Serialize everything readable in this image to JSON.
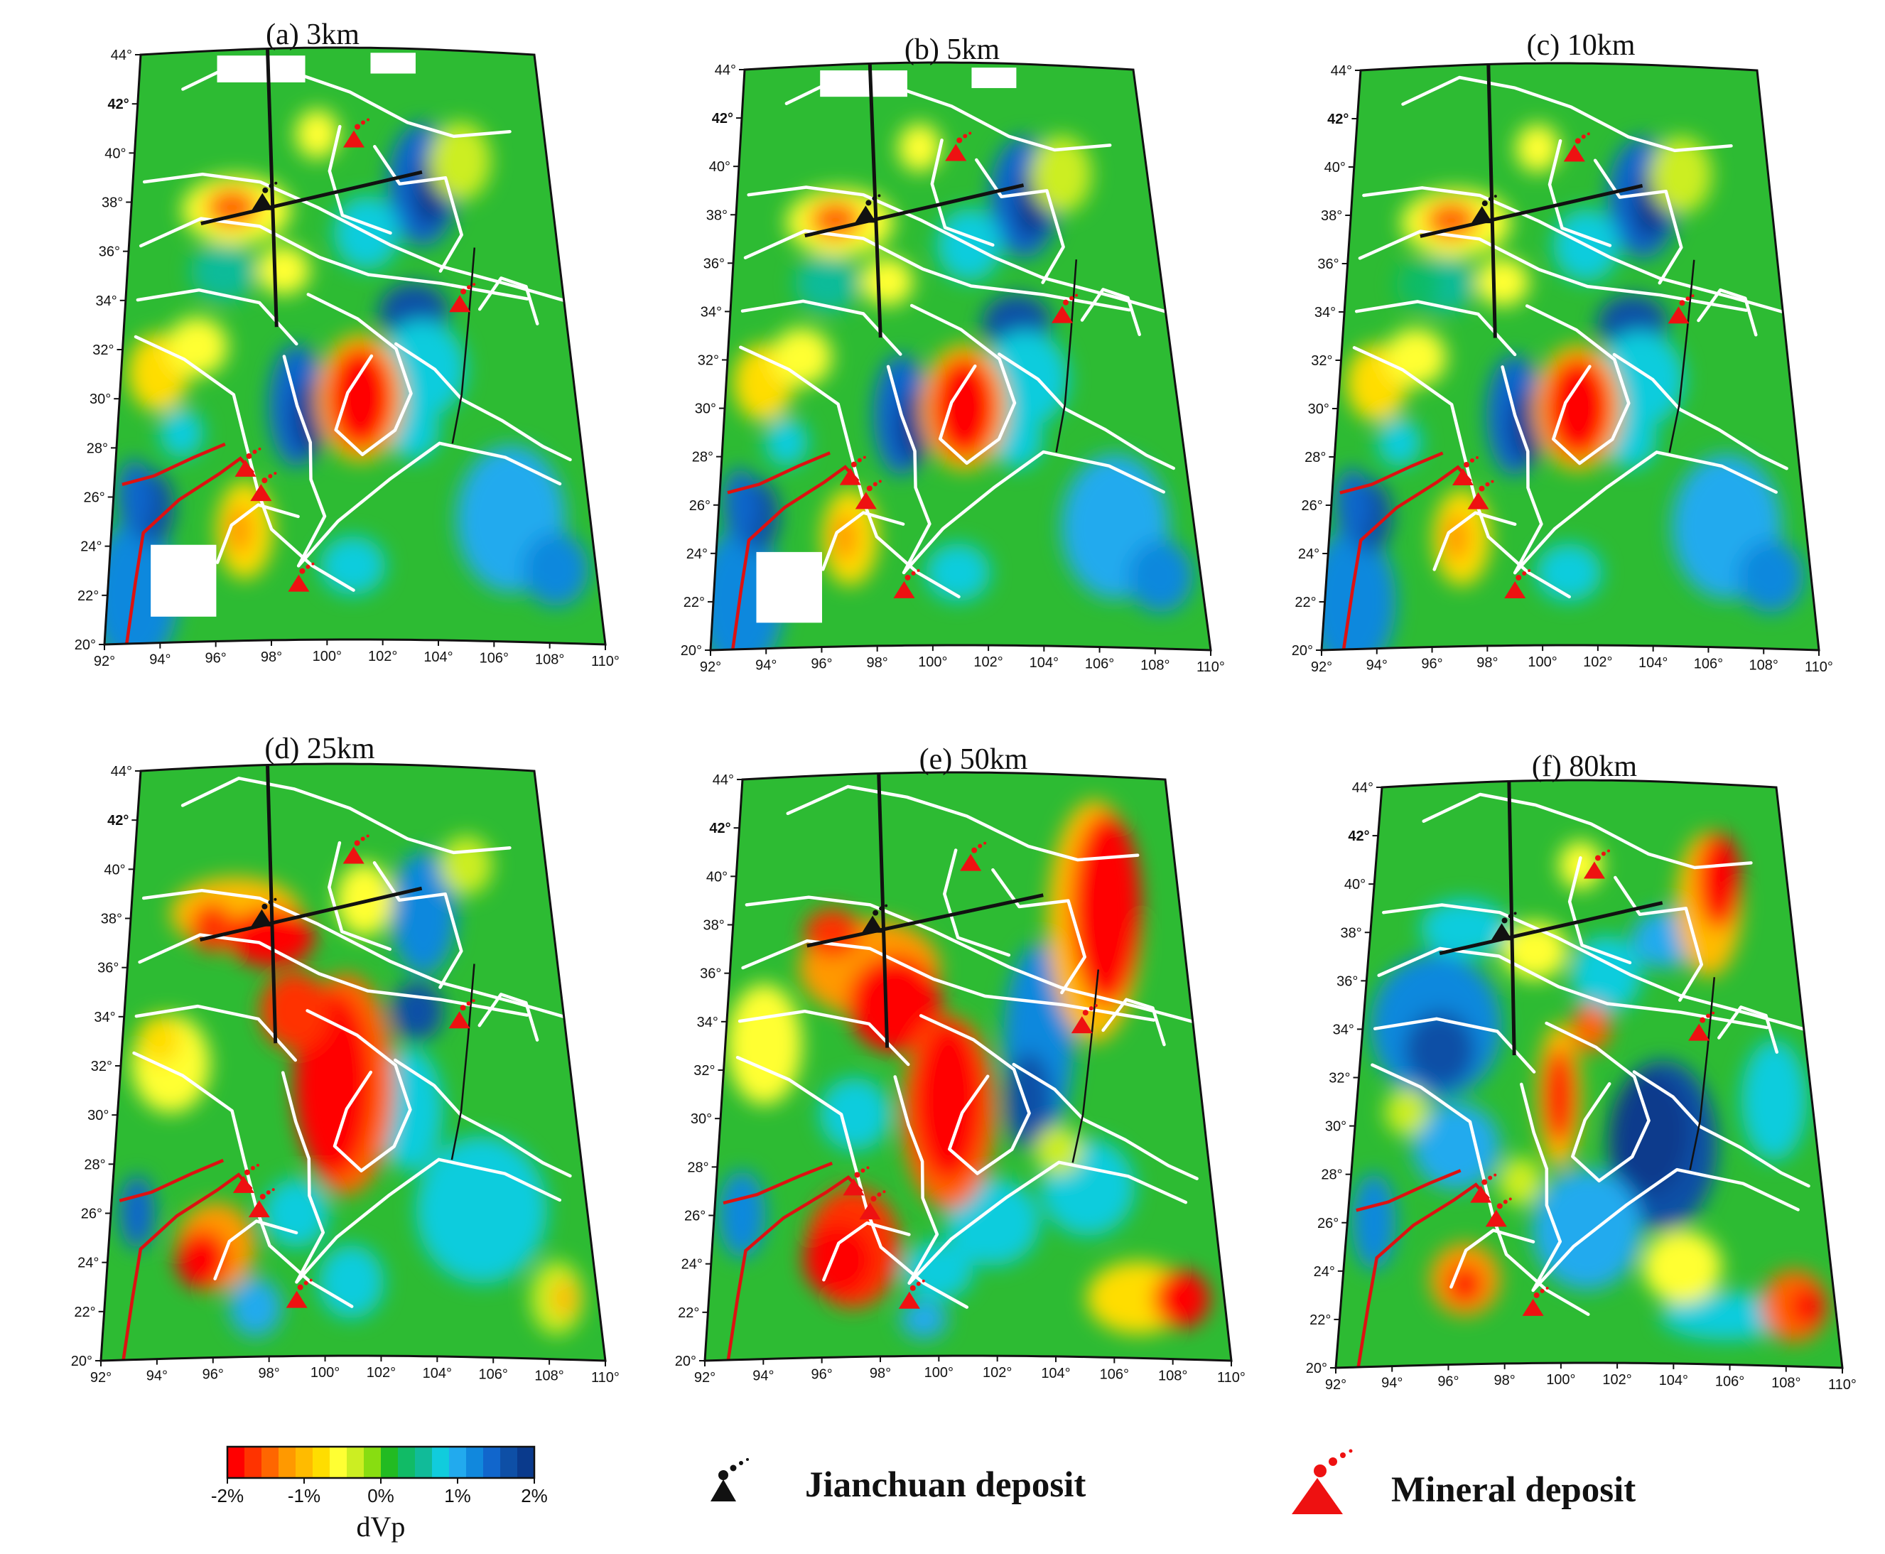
{
  "panels": [
    {
      "title": "(a) 3km",
      "depth_km": 3
    },
    {
      "title": "(b) 5km",
      "depth_km": 5
    },
    {
      "title": "(c) 10km",
      "depth_km": 10
    },
    {
      "title": "(d) 25km",
      "depth_km": 25
    },
    {
      "title": "(e) 50km",
      "depth_km": 50
    },
    {
      "title": "(f) 80km",
      "depth_km": 80
    }
  ],
  "map": {
    "lon_range": [
      92,
      110
    ],
    "lat_range": [
      20,
      44
    ],
    "lon_ticks": [
      "92°",
      "94°",
      "96°",
      "98°",
      "100°",
      "102°",
      "104°",
      "106°",
      "108°",
      "110°"
    ],
    "lat_ticks": [
      "20°",
      "22°",
      "24°",
      "26°",
      "28°",
      "30°",
      "32°",
      "34°",
      "36°",
      "38°",
      "40°",
      "42°",
      "44°"
    ],
    "profile_lines": [
      {
        "from": [
          95,
          37
        ],
        "to": [
          104.5,
          39
        ]
      },
      {
        "from": [
          97.8,
          44
        ],
        "to": [
          98.2,
          32.7
        ]
      }
    ],
    "jianchuan_deposit": [
      97.6,
      37.8
    ],
    "mineral_deposits": [
      [
        101.6,
        40.3
      ],
      [
        105.7,
        33.7
      ],
      [
        97,
        27
      ],
      [
        97.6,
        26
      ],
      [
        99,
        22.3
      ]
    ]
  },
  "colorbar": {
    "min_pct": -2,
    "max_pct": 2,
    "tick_labels": [
      "-2%",
      "-1%",
      "0%",
      "1%",
      "2%"
    ],
    "label": "dVp",
    "colors": [
      "#ff0000",
      "#ff3300",
      "#ff6600",
      "#ff9900",
      "#ffbb00",
      "#ffdd00",
      "#ffff33",
      "#ccee22",
      "#88dd11",
      "#22bb22",
      "#11bb66",
      "#11bb99",
      "#11ccdd",
      "#22aaee",
      "#1188dd",
      "#1166cc",
      "#0e4fa6",
      "#0a3a8c"
    ]
  },
  "legend": {
    "jianchuan_label": "Jianchuan deposit",
    "mineral_label": "Mineral deposit"
  }
}
